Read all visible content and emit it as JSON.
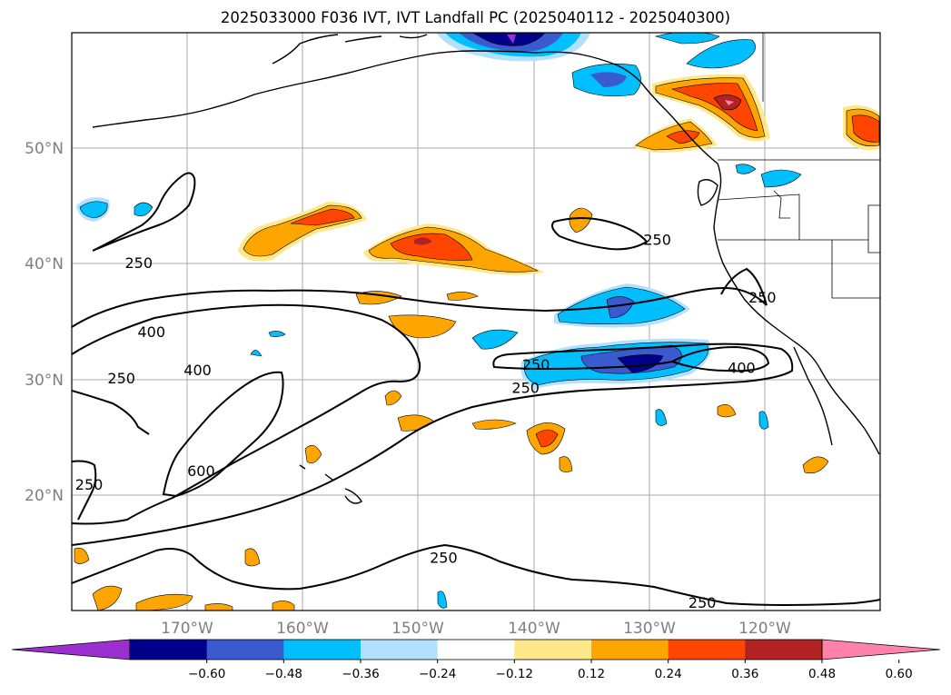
{
  "title": "2025033000 F036 IVT, IVT Landfall PC (2025040112 - 2025040300)",
  "map": {
    "lon_range": [
      -180,
      -110
    ],
    "lat_range": [
      10,
      60
    ],
    "lat_labels": [
      "50°N",
      "40°N",
      "30°N",
      "20°N"
    ],
    "lon_labels": [
      "170°W",
      "160°W",
      "150°W",
      "140°W",
      "130°W",
      "120°W"
    ],
    "contour_labels": [
      {
        "text": "250",
        "lon": -174.2,
        "lat": 40.0
      },
      {
        "text": "250",
        "lon": -129.3,
        "lat": 42.0
      },
      {
        "text": "250",
        "lon": -120.2,
        "lat": 37.0
      },
      {
        "text": "400",
        "lon": -173.1,
        "lat": 34.0
      },
      {
        "text": "250",
        "lon": -175.7,
        "lat": 30.0
      },
      {
        "text": "400",
        "lon": -169.1,
        "lat": 30.7
      },
      {
        "text": "250",
        "lon": -139.8,
        "lat": 31.2
      },
      {
        "text": "250",
        "lon": -140.7,
        "lat": 29.2
      },
      {
        "text": "400",
        "lon": -122.0,
        "lat": 30.9
      },
      {
        "text": "600",
        "lon": -168.8,
        "lat": 22.0
      },
      {
        "text": "250",
        "lon": -178.5,
        "lat": 20.8
      },
      {
        "text": "250",
        "lon": -147.8,
        "lat": 14.5
      },
      {
        "text": "250",
        "lon": -125.4,
        "lat": 10.6
      }
    ]
  },
  "colorbar": {
    "colors": [
      "#9b30d0",
      "#00008b",
      "#3a5bd0",
      "#00bfff",
      "#b0e2ff",
      "#ffffff",
      "#ffe88a",
      "#ffa500",
      "#ff4500",
      "#b22222",
      "#ff82ab"
    ],
    "tick_labels": [
      "−0.60",
      "−0.48",
      "−0.36",
      "−0.24",
      "−0.12",
      "0.12",
      "0.24",
      "0.36",
      "0.48",
      "0.60"
    ]
  }
}
